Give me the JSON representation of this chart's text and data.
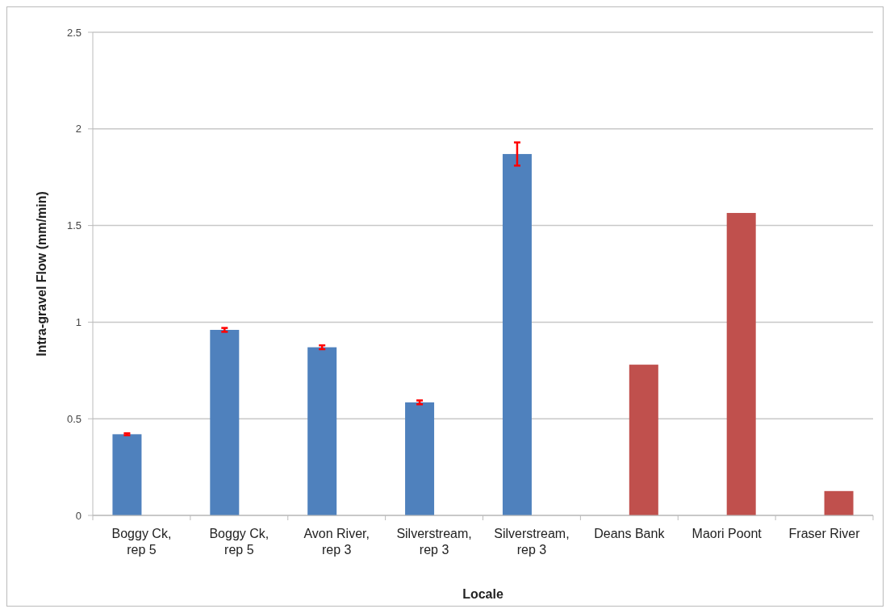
{
  "chart_data": {
    "type": "bar",
    "xlabel": "Locale",
    "ylabel": "Intra-gravel Flow (mm/min)",
    "categories": [
      "Boggy Ck, rep 5",
      "Boggy Ck, rep 5",
      "Avon River, rep 3",
      "Silverstream, rep 3",
      "Silverstream, rep 3",
      "Deans Bank",
      "Maori Poont",
      "Fraser River"
    ],
    "series": [
      {
        "color": "#4f81bd",
        "values": [
          0.42,
          0.96,
          0.87,
          0.585,
          1.87,
          null,
          null,
          null
        ],
        "errors": [
          0.005,
          0.01,
          0.01,
          0.01,
          0.06,
          null,
          null,
          null
        ]
      },
      {
        "color": "#c0504d",
        "values": [
          null,
          null,
          null,
          null,
          null,
          0.78,
          1.565,
          0.126
        ]
      }
    ],
    "ylim": [
      0,
      2.5
    ],
    "yticks": [
      0,
      0.5,
      1,
      1.5,
      2,
      2.5
    ],
    "grid": "y"
  }
}
